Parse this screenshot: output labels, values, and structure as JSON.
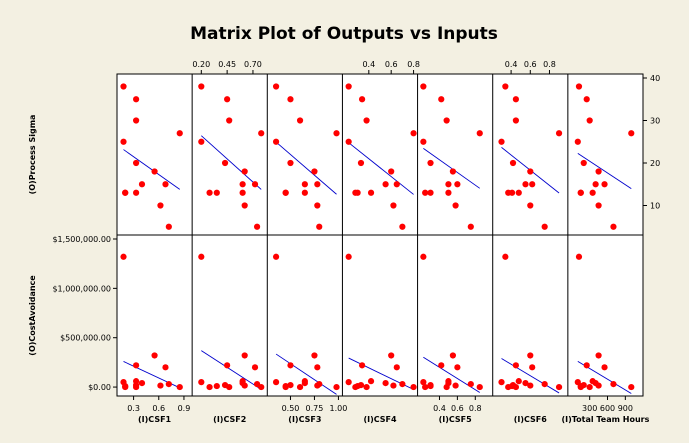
{
  "colors": {
    "background": "#f3f0e2",
    "point": "#ff0000",
    "fit_line": "#0000cc",
    "panel": "#ffffff"
  },
  "chart_data": {
    "type": "scatter",
    "title": "Matrix Plot of Outputs vs Inputs",
    "rows": [
      {
        "key": "ps",
        "label": "(O)Process Sigma",
        "range": [
          4,
          40
        ],
        "ticks": [
          10,
          20,
          30,
          40
        ],
        "tick_labels": [
          "10",
          "20",
          "30",
          "40"
        ],
        "tick_side": "right"
      },
      {
        "key": "cost",
        "label": "(O)CostAvoidance",
        "range": [
          -50000,
          1500000
        ],
        "ticks": [
          0,
          500000,
          1000000,
          1500000
        ],
        "tick_labels": [
          "$0.00",
          "$500,000.00",
          "$1,000,000.00",
          "$1,500,000.00"
        ],
        "tick_side": "left"
      }
    ],
    "columns": [
      {
        "label": "(I)CSF1",
        "range": [
          0.15,
          0.95
        ],
        "tick_side": "bottom",
        "ticks": [
          0.3,
          0.6,
          0.9
        ],
        "tick_labels": [
          "0.3",
          "0.6",
          "0.9"
        ],
        "x": [
          0.18,
          0.18,
          0.2,
          0.2,
          0.33,
          0.33,
          0.33,
          0.33,
          0.4,
          0.55,
          0.62,
          0.68,
          0.72,
          0.85
        ]
      },
      {
        "label": "(I)CSF2",
        "range": [
          0.15,
          0.8
        ],
        "tick_side": "top",
        "ticks": [
          0.2,
          0.45,
          0.7
        ],
        "tick_labels": [
          "0.20",
          "0.45",
          "0.70"
        ],
        "x": [
          0.2,
          0.2,
          0.28,
          0.35,
          0.43,
          0.45,
          0.47,
          0.6,
          0.6,
          0.62,
          0.62,
          0.72,
          0.74,
          0.78
        ]
      },
      {
        "label": "(I)CSF3",
        "range": [
          0.3,
          1.0
        ],
        "tick_side": "bottom",
        "ticks": [
          0.5,
          0.75,
          1.0
        ],
        "tick_labels": [
          "0.50",
          "0.75",
          "1.00"
        ],
        "x": [
          0.35,
          0.35,
          0.45,
          0.45,
          0.5,
          0.5,
          0.6,
          0.65,
          0.65,
          0.75,
          0.78,
          0.78,
          0.8,
          0.98
        ]
      },
      {
        "label": "(I)CSF4",
        "range": [
          0.2,
          0.8
        ],
        "tick_side": "top",
        "ticks": [
          0.4,
          0.6,
          0.8
        ],
        "tick_labels": [
          "0.4",
          "0.6",
          "0.8"
        ],
        "x": [
          0.22,
          0.22,
          0.28,
          0.3,
          0.33,
          0.34,
          0.38,
          0.42,
          0.55,
          0.6,
          0.62,
          0.65,
          0.7,
          0.8
        ]
      },
      {
        "label": "(I)CSF5",
        "range": [
          0.2,
          0.95
        ],
        "tick_side": "bottom",
        "ticks": [
          0.4,
          0.6,
          0.8
        ],
        "tick_labels": [
          "0.4",
          "0.6",
          "0.8"
        ],
        "x": [
          0.22,
          0.22,
          0.24,
          0.3,
          0.3,
          0.42,
          0.48,
          0.5,
          0.5,
          0.55,
          0.58,
          0.6,
          0.75,
          0.85
        ]
      },
      {
        "label": "(I)CSF6",
        "range": [
          0.25,
          0.95
        ],
        "tick_side": "top",
        "ticks": [
          0.4,
          0.6,
          0.8
        ],
        "tick_labels": [
          "0.4",
          "0.6",
          "0.8"
        ],
        "x": [
          0.3,
          0.34,
          0.37,
          0.41,
          0.42,
          0.45,
          0.45,
          0.48,
          0.55,
          0.6,
          0.6,
          0.62,
          0.75,
          0.9
        ]
      },
      {
        "label": "(I)Total Team Hours",
        "range": [
          0,
          1130
        ],
        "tick_side": "bottom",
        "ticks": [
          300,
          600,
          900
        ],
        "tick_labels": [
          "300",
          "600",
          "900"
        ],
        "x": [
          100,
          120,
          150,
          150,
          200,
          250,
          300,
          350,
          400,
          450,
          450,
          550,
          700,
          1000
        ]
      }
    ],
    "outputs": {
      "ps": [
        25,
        38,
        13,
        13,
        20,
        35,
        30,
        13,
        15,
        18,
        10,
        15,
        5,
        27
      ],
      "cost": [
        50000,
        1320000,
        0,
        10000,
        20000,
        220000,
        0,
        60000,
        40000,
        320000,
        15000,
        200000,
        30000,
        0
      ]
    }
  }
}
